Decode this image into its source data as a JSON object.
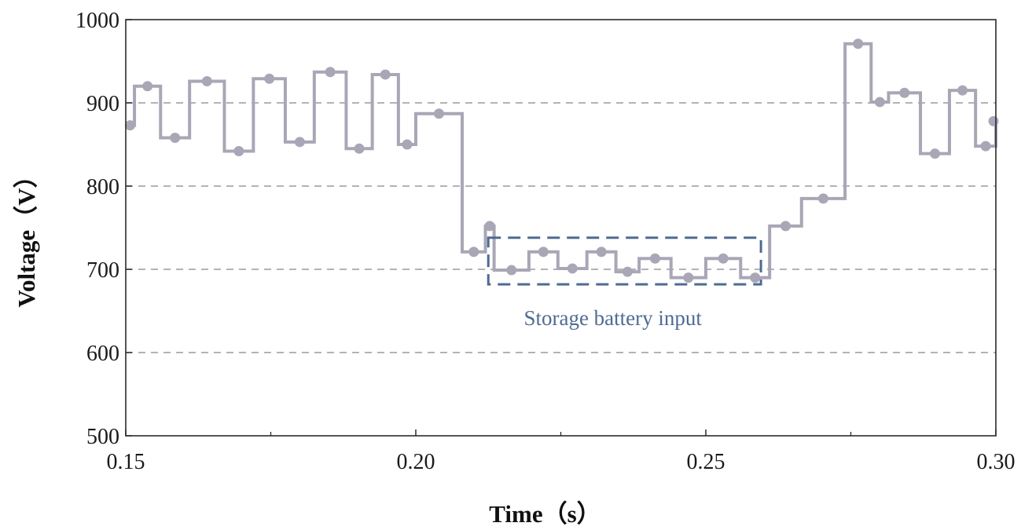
{
  "chart_data": {
    "type": "line",
    "step": true,
    "title": "",
    "xlabel": "Time（s）",
    "ylabel": "Voltage（V）",
    "xlim": [
      0.15,
      0.3
    ],
    "ylim": [
      500,
      1000
    ],
    "xticks": [
      0.15,
      0.2,
      0.25,
      0.3
    ],
    "xtick_labels": [
      "0.15",
      "0.20",
      "0.25",
      "0.30"
    ],
    "yticks": [
      500,
      600,
      700,
      800,
      900,
      1000
    ],
    "ytick_labels": [
      "500",
      "600",
      "700",
      "800",
      "900",
      "1000"
    ],
    "grid": "horizontal-dashed",
    "series_color": "#a9a6b6",
    "series": [
      {
        "x": [
          0.15,
          0.1515,
          0.156,
          0.161,
          0.167,
          0.172,
          0.1775,
          0.1825,
          0.188,
          0.1925,
          0.197,
          0.2,
          0.208,
          0.212,
          0.2135,
          0.2195,
          0.2245,
          0.2295,
          0.2345,
          0.2385,
          0.244,
          0.25,
          0.256,
          0.261,
          0.2665,
          0.274,
          0.2785,
          0.2815,
          0.287,
          0.292,
          0.2965,
          0.3
        ],
        "y": [
          873,
          920,
          858,
          926,
          842,
          929,
          853,
          937,
          845,
          934,
          850,
          887,
          721,
          752,
          699,
          721,
          701,
          721,
          697,
          713,
          690,
          713,
          690,
          752,
          785,
          971,
          901,
          912,
          839,
          915,
          848,
          878
        ]
      }
    ],
    "annotations": [
      {
        "text": "Storage battery input",
        "color": "#4f6b93",
        "box_x": [
          0.2125,
          0.2595
        ],
        "box_y": [
          682,
          738
        ]
      }
    ]
  }
}
